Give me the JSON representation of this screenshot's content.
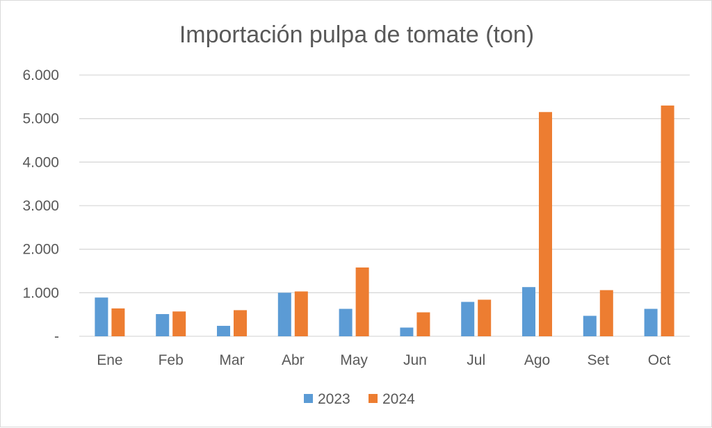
{
  "chart_data": {
    "type": "bar",
    "title": "Importación pulpa de tomate (ton)",
    "xlabel": "",
    "ylabel": "",
    "categories": [
      "Ene",
      "Feb",
      "Mar",
      "Abr",
      "May",
      "Jun",
      "Jul",
      "Ago",
      "Set",
      "Oct"
    ],
    "series": [
      {
        "name": "2023",
        "color": "#5b9bd5",
        "values": [
          890,
          510,
          240,
          1000,
          630,
          200,
          790,
          1130,
          470,
          630
        ]
      },
      {
        "name": "2024",
        "color": "#ed7d31",
        "values": [
          640,
          570,
          600,
          1030,
          1580,
          550,
          840,
          5150,
          1060,
          5300
        ]
      }
    ],
    "ylim": [
      0,
      6000
    ],
    "y_ticks": [
      0,
      1000,
      2000,
      3000,
      4000,
      5000,
      6000
    ],
    "y_tick_labels": [
      "-",
      "1.000",
      "2.000",
      "3.000",
      "4.000",
      "5.000",
      "6.000"
    ],
    "grid": true,
    "legend_position": "bottom"
  }
}
